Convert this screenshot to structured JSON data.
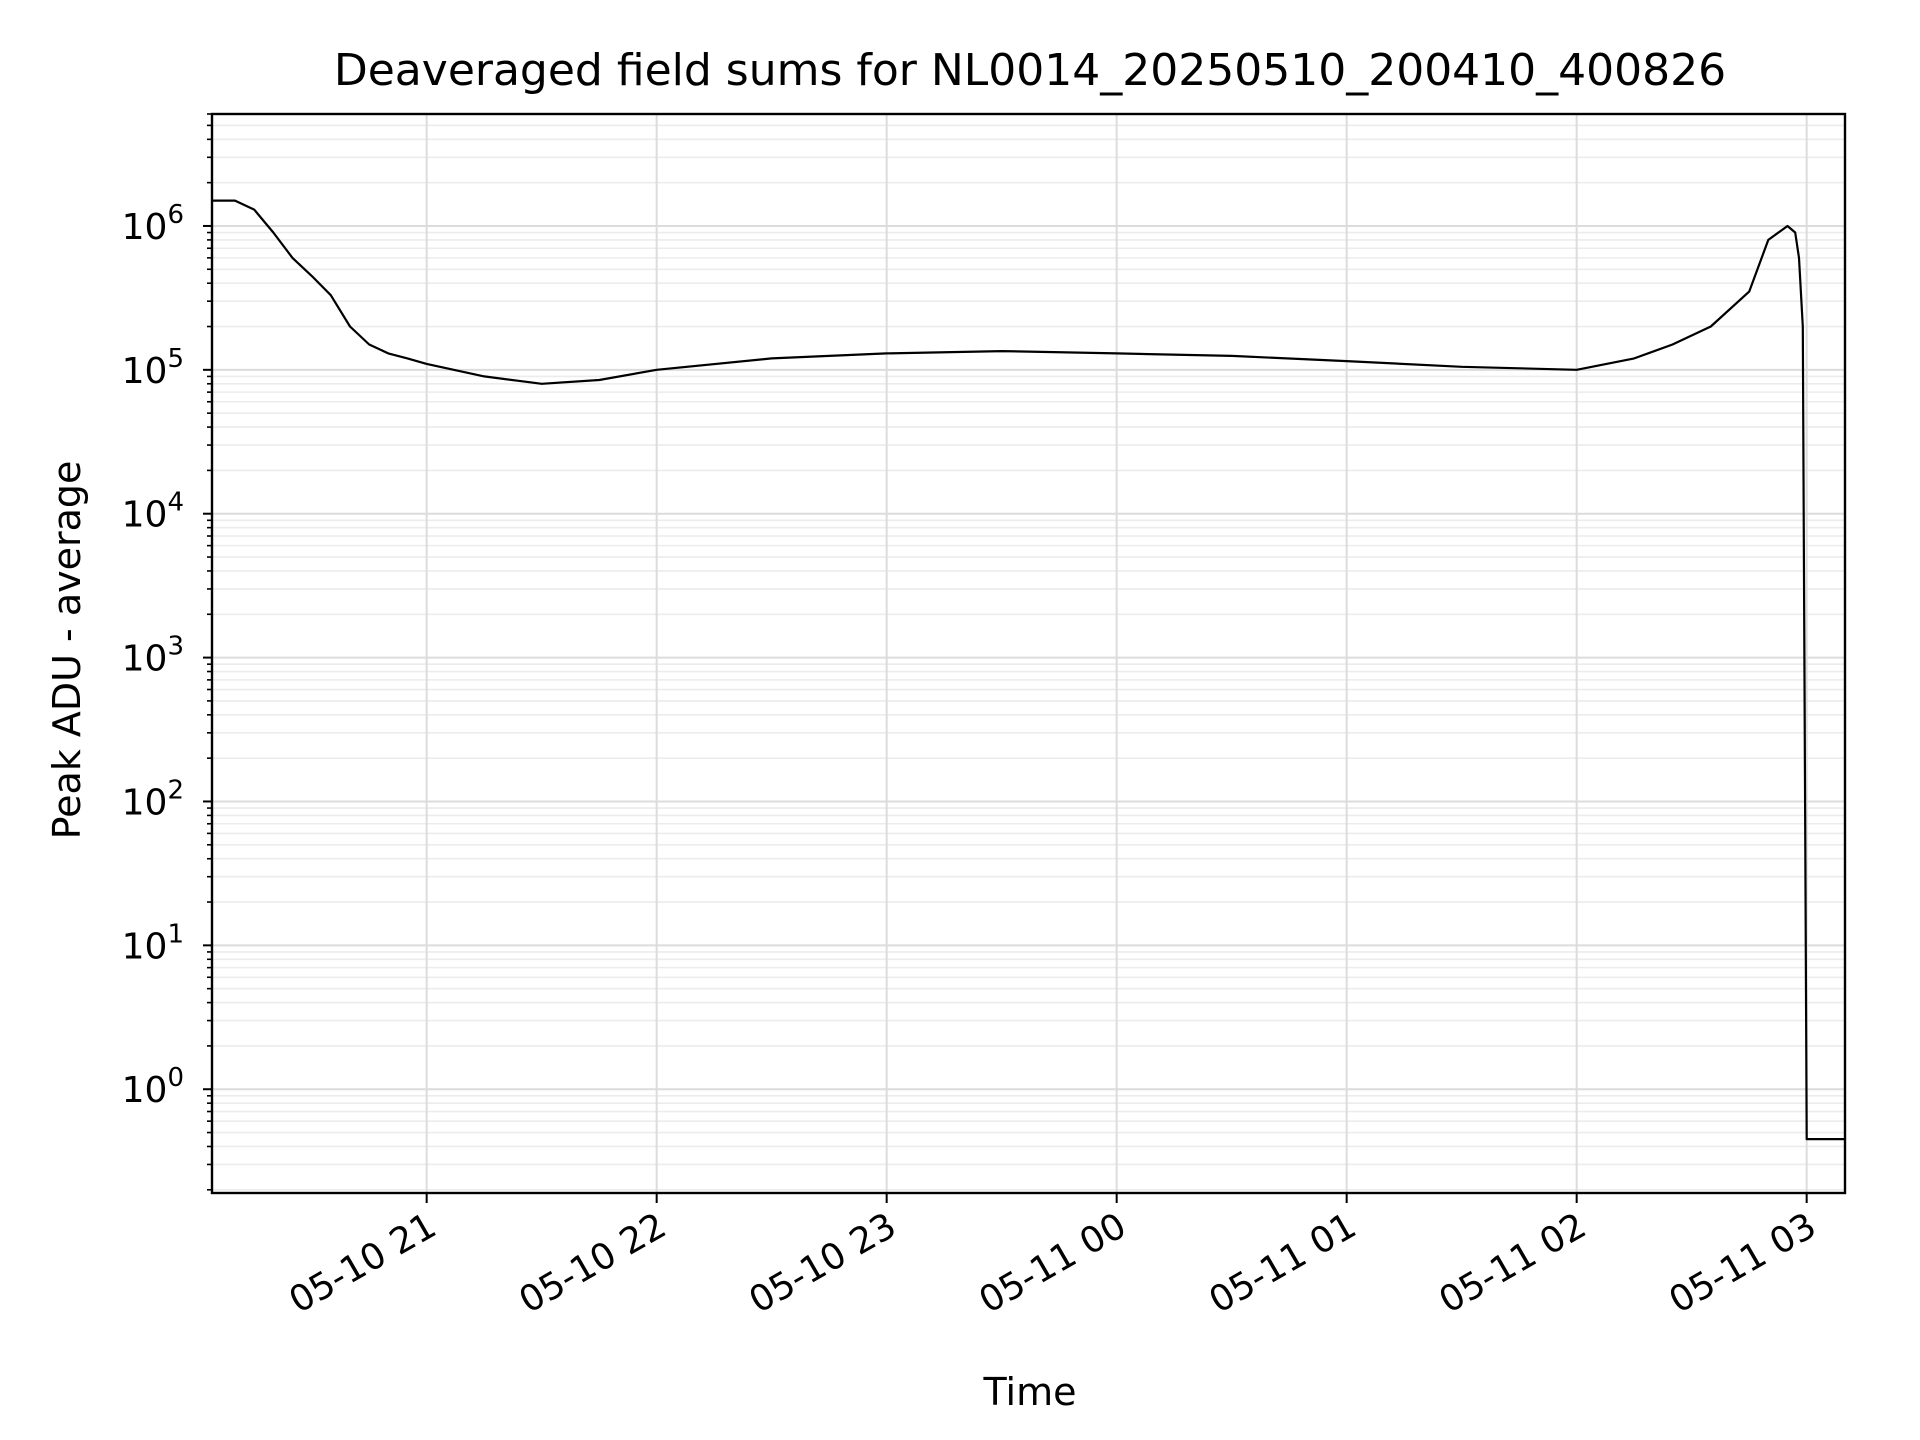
{
  "chart_data": {
    "type": "line",
    "title": "Deaveraged field sums for NL0014_20250510_200410_400826",
    "xlabel": "Time",
    "ylabel": "Peak ADU - average",
    "yscale": "log",
    "grid": true,
    "legend": "none",
    "series_color": "#000000",
    "x_ticks": [
      "05-10 21",
      "05-10 22",
      "05-10 23",
      "05-11 00",
      "05-11 01",
      "05-11 02",
      "05-11 03"
    ],
    "y_ticks": [
      {
        "base": "10",
        "exp": "0"
      },
      {
        "base": "10",
        "exp": "1"
      },
      {
        "base": "10",
        "exp": "2"
      },
      {
        "base": "10",
        "exp": "3"
      },
      {
        "base": "10",
        "exp": "4"
      },
      {
        "base": "10",
        "exp": "5"
      },
      {
        "base": "10",
        "exp": "6"
      }
    ],
    "xlim": [
      "2025-05-10T20:04",
      "2025-05-11T03:10"
    ],
    "ylim": [
      0.19,
      6000000
    ],
    "series": [
      {
        "x": [
          "2025-05-10T20:04",
          "2025-05-10T20:10",
          "2025-05-10T20:15",
          "2025-05-10T20:20",
          "2025-05-10T20:25",
          "2025-05-10T20:30",
          "2025-05-10T20:35",
          "2025-05-10T20:40",
          "2025-05-10T20:45",
          "2025-05-10T20:50",
          "2025-05-10T20:55",
          "2025-05-10T21:00",
          "2025-05-10T21:15",
          "2025-05-10T21:30",
          "2025-05-10T21:45",
          "2025-05-10T22:00",
          "2025-05-10T22:30",
          "2025-05-10T23:00",
          "2025-05-10T23:30",
          "2025-05-11T00:00",
          "2025-05-11T00:30",
          "2025-05-11T01:00",
          "2025-05-11T01:30",
          "2025-05-11T02:00",
          "2025-05-11T02:15",
          "2025-05-11T02:25",
          "2025-05-11T02:35",
          "2025-05-11T02:45",
          "2025-05-11T02:50",
          "2025-05-11T02:55",
          "2025-05-11T02:57",
          "2025-05-11T02:58",
          "2025-05-11T02:59",
          "2025-05-11T03:00",
          "2025-05-11T03:05",
          "2025-05-11T03:10"
        ],
        "y": [
          1500000,
          1500000,
          1300000,
          900000,
          600000,
          450000,
          330000,
          200000,
          150000,
          130000,
          120000,
          110000,
          90000,
          80000,
          85000,
          100000,
          120000,
          130000,
          135000,
          130000,
          125000,
          115000,
          105000,
          100000,
          120000,
          150000,
          200000,
          350000,
          800000,
          1000000,
          900000,
          600000,
          200000,
          0.45,
          0.45,
          0.45
        ]
      }
    ]
  }
}
